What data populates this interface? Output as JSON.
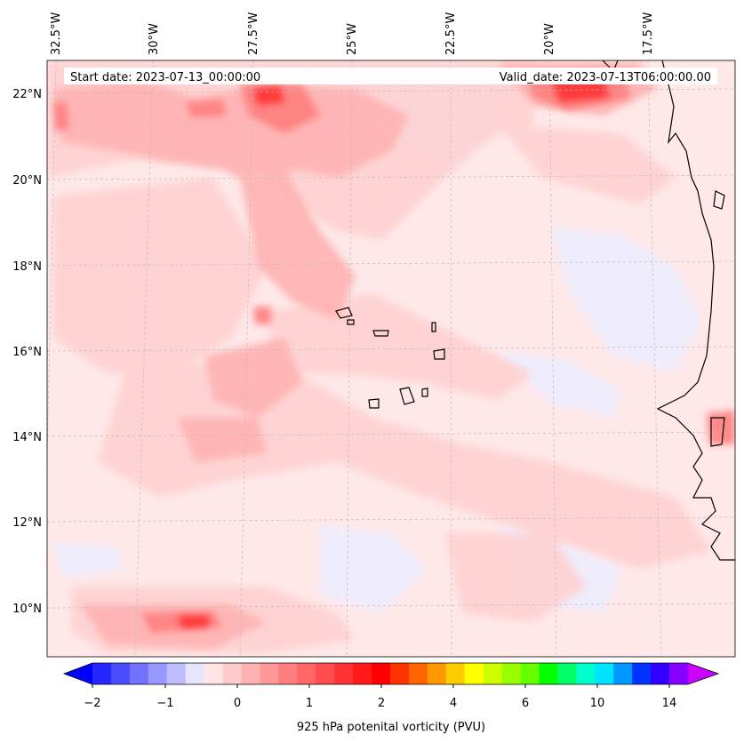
{
  "header": {
    "start_date": "Start date: 2023-07-13_00:00:00",
    "valid_date": "Valid_date: 2023-07-13T06:00:00.00"
  },
  "axes": {
    "lon_labels": [
      "32.5°W",
      "30°W",
      "27.5°W",
      "25°W",
      "22.5°W",
      "20°W",
      "17.5°W"
    ],
    "lat_labels": [
      "22°N",
      "20°N",
      "18°N",
      "16°N",
      "14°N",
      "12°N",
      "10°N"
    ]
  },
  "colorbar": {
    "label": "925 hPa potenital vorticity (PVU)",
    "tick_labels": [
      "−2",
      "−1",
      "0",
      "1",
      "2",
      "4",
      "6",
      "10",
      "14"
    ],
    "colors": [
      "#0000ff",
      "#2626ff",
      "#4c4cff",
      "#7272ff",
      "#9898ff",
      "#bebeff",
      "#e5e5ff",
      "#ffe5e5",
      "#ffcccc",
      "#ffb2b2",
      "#ff9999",
      "#ff7f7f",
      "#ff6666",
      "#ff4c4c",
      "#ff3333",
      "#ff1919",
      "#ff0000",
      "#ff3300",
      "#ff6600",
      "#ff9900",
      "#ffcc00",
      "#ffff00",
      "#ccff00",
      "#99ff00",
      "#66ff00",
      "#00ff00",
      "#00ff66",
      "#00ffcc",
      "#00e5ff",
      "#0099ff",
      "#0033ff",
      "#3300ff",
      "#8800ff",
      "#cc00ff"
    ]
  },
  "colors": {
    "background_field": "#ffe8e8",
    "coastline": "#000000"
  }
}
